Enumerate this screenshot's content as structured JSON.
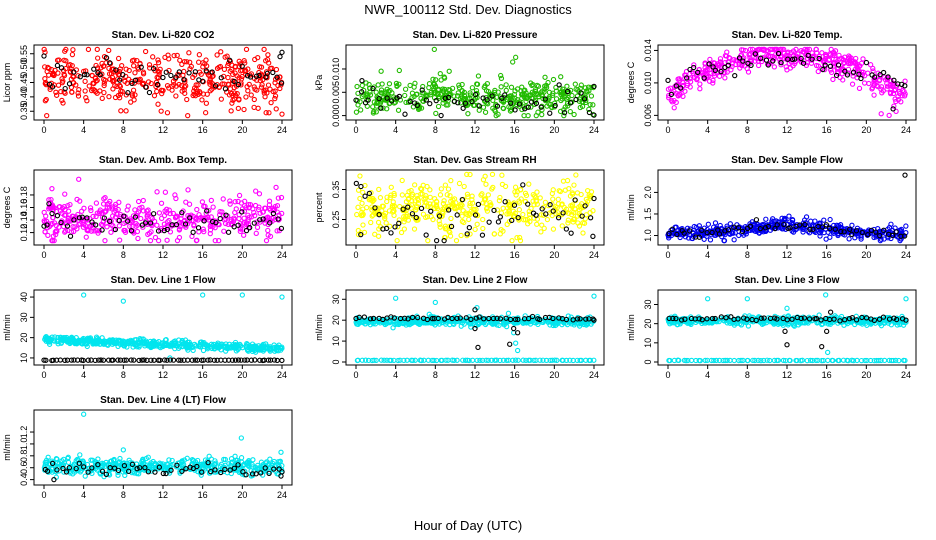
{
  "page": {
    "title": "NWR_100112  Std. Dev. Diagnostics",
    "xlabel": "Hour of Day (UTC)"
  },
  "chart_data": [
    {
      "type": "scatter",
      "title": "Stan. Dev. Li-820 CO2",
      "ylabel": "Licor ppm",
      "xlim": [
        0,
        24
      ],
      "ylim": [
        0.33,
        0.57
      ],
      "yticks": [
        "0.35",
        "0.40",
        "0.45",
        "0.50",
        "0.55"
      ],
      "ytick_values": [
        0.35,
        0.4,
        0.45,
        0.5,
        0.55
      ],
      "xticks": [
        "0",
        "4",
        "8",
        "12",
        "16",
        "20",
        "24"
      ],
      "series": [
        {
          "name": "all",
          "color": "#ff0000",
          "center": 0.46,
          "spread": 0.045,
          "n": 420,
          "outliers": [
            [
              2.2,
              0.565
            ],
            [
              6.1,
              0.54
            ],
            [
              16.3,
              0.345
            ],
            [
              19.6,
              0.36
            ],
            [
              22.4,
              0.345
            ],
            [
              24.0,
              0.34
            ]
          ]
        },
        {
          "name": "hourly",
          "color": "#000000",
          "center": 0.47,
          "spread": 0.03,
          "n": 55,
          "outliers": [
            [
              24.0,
              0.555
            ],
            [
              23.8,
              0.54
            ]
          ]
        }
      ]
    },
    {
      "type": "scatter",
      "title": "Stan. Dev. Li-820 Pressure",
      "ylabel": "kPa",
      "xlim": [
        0,
        24
      ],
      "ylim": [
        -0.0003,
        0.0145
      ],
      "yticks": [
        "0.000",
        "0.005",
        "0.010"
      ],
      "ytick_values": [
        0.0,
        0.005,
        0.01
      ],
      "xticks": [
        "0",
        "4",
        "8",
        "12",
        "16",
        "20",
        "24"
      ],
      "series": [
        {
          "name": "all",
          "color": "#22bb00",
          "center": 0.004,
          "spread": 0.0018,
          "n": 420,
          "outliers": [
            [
              7.9,
              0.0142
            ],
            [
              16.1,
              0.0125
            ],
            [
              15.8,
              0.0115
            ],
            [
              8.5,
              0.009
            ],
            [
              9.4,
              0.0095
            ]
          ]
        },
        {
          "name": "hourly",
          "color": "#000000",
          "center": 0.003,
          "spread": 0.0015,
          "n": 55,
          "outliers": [
            [
              0.6,
              0.0075
            ],
            [
              24.0,
              0.0001
            ]
          ]
        }
      ]
    },
    {
      "type": "scatter",
      "title": "Stan. Dev. Li-820 Temp.",
      "ylabel": "degrees C",
      "xlim": [
        0,
        24
      ],
      "ylim": [
        0.0058,
        0.0143
      ],
      "yticks": [
        "0.006",
        "0.010",
        "0.014"
      ],
      "ytick_values": [
        0.006,
        0.01,
        0.014
      ],
      "xticks": [
        "0",
        "4",
        "8",
        "12",
        "16",
        "20",
        "24"
      ],
      "series": [
        {
          "name": "all",
          "color": "#ff00ff",
          "shape": "arch",
          "base": 0.0085,
          "peak": 0.0133,
          "spread": 0.0008,
          "n": 420,
          "outliers": [
            [
              21.5,
              0.0062
            ],
            [
              22.3,
              0.006
            ],
            [
              23.0,
              0.0065
            ]
          ]
        },
        {
          "name": "hourly",
          "color": "#000000",
          "shape": "arch",
          "base": 0.0095,
          "peak": 0.0128,
          "spread": 0.0006,
          "n": 55,
          "outliers": [
            [
              22.7,
              0.0068
            ]
          ]
        }
      ]
    },
    {
      "type": "scatter",
      "title": "Stan. Dev. Amb. Box Temp.",
      "ylabel": "degrees C",
      "xlim": [
        0,
        24
      ],
      "ylim": [
        0.105,
        0.215
      ],
      "yticks": [
        "0.12",
        "0.14",
        "0.16",
        "0.18"
      ],
      "ytick_values": [
        0.12,
        0.14,
        0.16,
        0.18
      ],
      "xticks": [
        "0",
        "4",
        "8",
        "12",
        "16",
        "20",
        "24"
      ],
      "series": [
        {
          "name": "all",
          "color": "#ff00ff",
          "center": 0.142,
          "spread": 0.017,
          "n": 420,
          "outliers": [
            [
              3.5,
              0.205
            ],
            [
              0.8,
              0.19
            ],
            [
              23.4,
              0.192
            ],
            [
              11.4,
              0.185
            ],
            [
              13.2,
              0.18
            ]
          ]
        },
        {
          "name": "hourly",
          "color": "#000000",
          "center": 0.135,
          "spread": 0.01,
          "n": 55,
          "outliers": [
            [
              0.5,
              0.166
            ]
          ]
        }
      ]
    },
    {
      "type": "scatter",
      "title": "Stan. Dev. Gas Stream RH",
      "ylabel": "percent",
      "xlim": [
        0,
        24
      ],
      "ylim": [
        0.175,
        0.405
      ],
      "yticks": [
        "0.25",
        "0.35"
      ],
      "ytick_values": [
        0.25,
        0.35
      ],
      "xticks": [
        "0",
        "4",
        "8",
        "12",
        "16",
        "20",
        "24"
      ],
      "series": [
        {
          "name": "all",
          "color": "#ffff00",
          "center": 0.285,
          "spread": 0.045,
          "n": 420,
          "outliers": [
            [
              11.5,
              0.4
            ],
            [
              0.4,
              0.395
            ],
            [
              9.0,
              0.19
            ],
            [
              16.5,
              0.19
            ]
          ]
        },
        {
          "name": "hourly",
          "color": "#000000",
          "center": 0.27,
          "spread": 0.04,
          "n": 55,
          "outliers": [
            [
              0.5,
              0.36
            ],
            [
              24.0,
              0.32
            ]
          ]
        }
      ]
    },
    {
      "type": "scatter",
      "title": "Stan. Dev. Sample Flow",
      "ylabel": "ml/min",
      "xlim": [
        0,
        24
      ],
      "ylim": [
        0.85,
        2.45
      ],
      "yticks": [
        "1.0",
        "1.5",
        "2.0"
      ],
      "ytick_values": [
        1.0,
        1.5,
        2.0
      ],
      "xticks": [
        "0",
        "4",
        "8",
        "12",
        "16",
        "20",
        "24"
      ],
      "series": [
        {
          "name": "all",
          "color": "#0000ee",
          "shape": "bump",
          "base": 1.05,
          "peak": 1.25,
          "peak_x": 12,
          "spread": 0.08,
          "n": 420,
          "outliers": [
            [
              12.2,
              1.45
            ],
            [
              11.5,
              1.4
            ]
          ]
        },
        {
          "name": "hourly",
          "color": "#000000",
          "shape": "bump",
          "base": 1.05,
          "peak": 1.2,
          "peak_x": 12,
          "spread": 0.06,
          "n": 55,
          "outliers": [
            [
              23.9,
              2.4
            ]
          ]
        }
      ]
    },
    {
      "type": "scatter",
      "title": "Stan. Dev. Line 1 Flow",
      "ylabel": "ml/min",
      "xlim": [
        0,
        24
      ],
      "ylim": [
        8,
        42
      ],
      "yticks": [
        "10",
        "20",
        "30",
        "40"
      ],
      "ytick_values": [
        10,
        20,
        30,
        40
      ],
      "xticks": [
        "0",
        "4",
        "8",
        "12",
        "16",
        "20",
        "24"
      ],
      "series": [
        {
          "name": "all",
          "color": "#00e5ee",
          "shape": "decline",
          "start": 19,
          "end": 14.5,
          "spread": 1.0,
          "n": 480,
          "outliers": [
            [
              4.0,
              41
            ],
            [
              8.0,
              38
            ],
            [
              12.7,
              10
            ],
            [
              16.0,
              41
            ],
            [
              20.0,
              41
            ],
            [
              24.0,
              40
            ]
          ]
        },
        {
          "name": "baseline",
          "color": "#000000",
          "center": 8.9,
          "spread": 0.05,
          "n": 72,
          "outliers": []
        }
      ]
    },
    {
      "type": "scatter",
      "title": "Stan. Dev. Line 2 Flow",
      "ylabel": "ml/min",
      "xlim": [
        0,
        24
      ],
      "ylim": [
        0,
        33
      ],
      "yticks": [
        "0",
        "10",
        "20",
        "30"
      ],
      "ytick_values": [
        0,
        10,
        20,
        30
      ],
      "xticks": [
        "0",
        "4",
        "8",
        "12",
        "16",
        "20",
        "24"
      ],
      "series": [
        {
          "name": "all",
          "color": "#00e5ee",
          "center": 19.5,
          "spread": 1.0,
          "n": 460,
          "outliers": [
            [
              4.0,
              30.5
            ],
            [
              8.0,
              28.5
            ],
            [
              12.2,
              26
            ],
            [
              16.3,
              5.5
            ],
            [
              16.1,
              9
            ],
            [
              15.9,
              14
            ],
            [
              24.0,
              31.5
            ]
          ]
        },
        {
          "name": "baseline",
          "color": "#00e5ee",
          "center": 0.8,
          "spread": 0.05,
          "n": 80,
          "outliers": []
        },
        {
          "name": "hourly",
          "color": "#000000",
          "center": 20.8,
          "spread": 0.4,
          "n": 55,
          "outliers": [
            [
              12.0,
              25
            ],
            [
              12.0,
              16
            ],
            [
              12.3,
              7
            ],
            [
              15.5,
              8.5
            ],
            [
              15.9,
              16
            ],
            [
              16.3,
              14
            ],
            [
              24.0,
              20
            ]
          ]
        }
      ]
    },
    {
      "type": "scatter",
      "title": "Stan. Dev. Line 3 Flow",
      "ylabel": "ml/min",
      "xlim": [
        0,
        24
      ],
      "ylim": [
        0,
        36
      ],
      "yticks": [
        "0",
        "10",
        "20",
        "30"
      ],
      "ytick_values": [
        0,
        10,
        20,
        30
      ],
      "xticks": [
        "0",
        "4",
        "8",
        "12",
        "16",
        "20",
        "24"
      ],
      "series": [
        {
          "name": "all",
          "color": "#00e5ee",
          "center": 21.5,
          "spread": 1.0,
          "n": 460,
          "outliers": [
            [
              4.0,
              33
            ],
            [
              8.0,
              33
            ],
            [
              12.0,
              28
            ],
            [
              15.9,
              35
            ],
            [
              16.1,
              5
            ],
            [
              24.0,
              33
            ]
          ]
        },
        {
          "name": "baseline",
          "color": "#00e5ee",
          "center": 0.8,
          "spread": 0.05,
          "n": 80,
          "outliers": []
        },
        {
          "name": "hourly",
          "color": "#000000",
          "center": 22.5,
          "spread": 0.4,
          "n": 55,
          "outliers": [
            [
              12.0,
              9
            ],
            [
              11.8,
              16
            ],
            [
              15.5,
              8
            ],
            [
              16.0,
              16
            ],
            [
              16.4,
              26
            ]
          ]
        }
      ]
    },
    {
      "type": "scatter",
      "title": "Stan. Dev. Line 4 (LT) Flow",
      "ylabel": "ml/min",
      "xlim": [
        0,
        24
      ],
      "ylim": [
        0.36,
        1.52
      ],
      "yticks": [
        "0.4",
        "0.6",
        "0.8",
        "1.0",
        "1.2"
      ],
      "ytick_values": [
        0.4,
        0.6,
        0.8,
        1.0,
        1.2
      ],
      "xticks": [
        "0",
        "4",
        "8",
        "12",
        "16",
        "20",
        "24"
      ],
      "series": [
        {
          "name": "all",
          "color": "#00e5ee",
          "center": 0.62,
          "spread": 0.07,
          "n": 460,
          "outliers": [
            [
              4.0,
              1.5
            ],
            [
              19.9,
              1.1
            ],
            [
              8.0,
              0.9
            ],
            [
              23.9,
              0.86
            ]
          ]
        },
        {
          "name": "hourly",
          "color": "#000000",
          "center": 0.58,
          "spread": 0.05,
          "n": 55,
          "outliers": [
            [
              1.0,
              0.4
            ],
            [
              23.9,
              0.46
            ]
          ]
        }
      ]
    }
  ]
}
